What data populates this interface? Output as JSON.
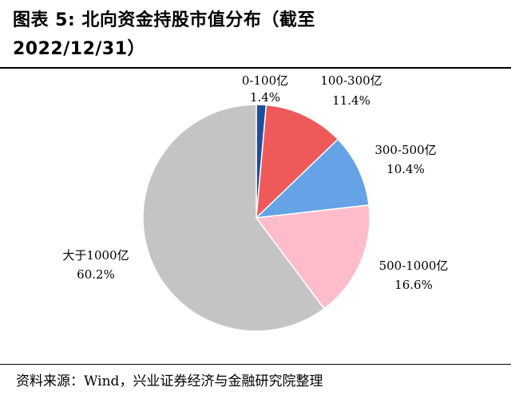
{
  "title_line1": "图表 5:  北向资金持股市值分布（截至",
  "title_line2": "2022/12/31）",
  "source": "资料来源：Wind，兴业证券经济与金融研究院整理",
  "chart_data": {
    "type": "pie",
    "slices": [
      {
        "label": "0-100亿",
        "pct_text": "1.4%",
        "value": 1.4,
        "color": "#1f4e9c"
      },
      {
        "label": "100-300亿",
        "pct_text": "11.4%",
        "value": 11.4,
        "color": "#ee5a5a"
      },
      {
        "label": "300-500亿",
        "pct_text": "10.4%",
        "value": 10.4,
        "color": "#66a3e6"
      },
      {
        "label": "500-1000亿",
        "pct_text": "16.6%",
        "value": 16.6,
        "color": "#ffbcca"
      },
      {
        "label": "大于1000亿",
        "pct_text": "60.2%",
        "value": 60.2,
        "color": "#c4c4c4"
      }
    ]
  }
}
